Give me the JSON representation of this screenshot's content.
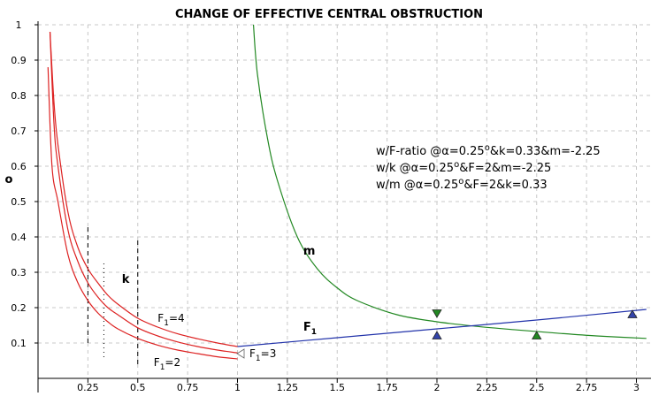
{
  "chart_data": {
    "type": "line",
    "title": "CHANGE OF EFFECTIVE CENTRAL OBSTRUCTION",
    "ylabel": "o",
    "xlim": [
      0,
      3.05
    ],
    "ylim": [
      0,
      1
    ],
    "x_ticks": [
      "0.25",
      "0.5",
      "0.75",
      "1",
      "1.25",
      "1.5",
      "1.75",
      "2",
      "2.25",
      "2.5",
      "2.75",
      "3"
    ],
    "y_ticks": [
      "0.1",
      "0.2",
      "0.3",
      "0.4",
      "0.5",
      "0.6",
      "0.7",
      "0.8",
      "0.9",
      "1"
    ],
    "grid": true,
    "notes": [
      {
        "prefix": "w/F-ratio @α=0.25",
        "sup": "o",
        "suffix": "&k=0.33&m=-2.25"
      },
      {
        "prefix": "w/k @α=0.25",
        "sup": "o",
        "suffix": "&F=2&m=-2.25"
      },
      {
        "prefix": "w/m @α=0.25",
        "sup": "o",
        "suffix": "&F=2&k=0.33"
      }
    ],
    "series": [
      {
        "id": "red-outer",
        "color": "#dd2222",
        "x": [
          0.06,
          0.08,
          0.1,
          0.15,
          0.2,
          0.25,
          0.3,
          0.35,
          0.4,
          0.5,
          0.6,
          0.7,
          0.8,
          0.9,
          1.0
        ],
        "y": [
          0.98,
          0.78,
          0.66,
          0.47,
          0.37,
          0.31,
          0.27,
          0.235,
          0.21,
          0.17,
          0.145,
          0.126,
          0.112,
          0.1,
          0.09
        ]
      },
      {
        "id": "red-mid",
        "color": "#dd2222",
        "x": [
          0.06,
          0.08,
          0.1,
          0.15,
          0.2,
          0.25,
          0.3,
          0.35,
          0.4,
          0.5,
          0.6,
          0.7,
          0.8,
          0.9,
          1.0
        ],
        "y": [
          0.98,
          0.72,
          0.6,
          0.42,
          0.33,
          0.27,
          0.23,
          0.2,
          0.18,
          0.143,
          0.12,
          0.103,
          0.09,
          0.08,
          0.072
        ]
      },
      {
        "id": "red-inner",
        "color": "#dd2222",
        "x": [
          0.05,
          0.07,
          0.1,
          0.15,
          0.2,
          0.25,
          0.3,
          0.35,
          0.4,
          0.5,
          0.6,
          0.7,
          0.8,
          0.9,
          1.0
        ],
        "y": [
          0.88,
          0.6,
          0.5,
          0.35,
          0.27,
          0.22,
          0.185,
          0.16,
          0.14,
          0.113,
          0.094,
          0.08,
          0.07,
          0.061,
          0.055
        ]
      },
      {
        "id": "m",
        "color": "#228822",
        "x": [
          1.08,
          1.1,
          1.15,
          1.2,
          1.3,
          1.4,
          1.5,
          1.6,
          1.8,
          2.0,
          2.2,
          2.4,
          2.6,
          2.8,
          3.05
        ],
        "y": [
          1.0,
          0.86,
          0.68,
          0.56,
          0.4,
          0.31,
          0.256,
          0.22,
          0.18,
          0.16,
          0.147,
          0.137,
          0.128,
          0.12,
          0.113
        ]
      },
      {
        "id": "F1",
        "color": "#2233aa",
        "x": [
          1.0,
          1.5,
          2.0,
          2.5,
          3.05
        ],
        "y": [
          0.09,
          0.115,
          0.14,
          0.165,
          0.195
        ]
      }
    ],
    "vlines": [
      {
        "x": 0.25,
        "y0": 0.1,
        "y1": 0.43,
        "style": "dashed"
      },
      {
        "x": 0.33,
        "y0": 0.06,
        "y1": 0.33,
        "style": "dotted"
      },
      {
        "x": 0.5,
        "y0": 0.04,
        "y1": 0.39,
        "style": "dashed"
      }
    ],
    "markers": [
      {
        "x": 2.0,
        "y": 0.185,
        "shape": "down",
        "color": "#228822"
      },
      {
        "x": 2.0,
        "y": 0.12,
        "shape": "up",
        "color": "#3344aa"
      },
      {
        "x": 2.5,
        "y": 0.12,
        "shape": "up",
        "color": "#228822"
      },
      {
        "x": 2.98,
        "y": 0.18,
        "shape": "up",
        "color": "#3344aa"
      },
      {
        "x": 1.02,
        "y": 0.07,
        "shape": "left",
        "color": "#888888"
      }
    ],
    "labels": [
      {
        "text": "k",
        "sub": "",
        "x": 0.42,
        "y": 0.27,
        "bold": true
      },
      {
        "text": "m",
        "sub": "",
        "x": 1.33,
        "y": 0.35,
        "bold": true
      },
      {
        "text": "F",
        "sub": "1",
        "x": 1.33,
        "y": 0.135,
        "bold": true
      },
      {
        "text": "F",
        "sub": "1",
        "suffix": "=4",
        "x": 0.6,
        "y": 0.16,
        "bold": false
      },
      {
        "text": "F",
        "sub": "1",
        "suffix": "=2",
        "x": 0.58,
        "y": 0.035,
        "bold": false
      },
      {
        "text": "F",
        "sub": "1",
        "suffix": "=3",
        "x": 1.06,
        "y": 0.06,
        "bold": false
      }
    ]
  }
}
